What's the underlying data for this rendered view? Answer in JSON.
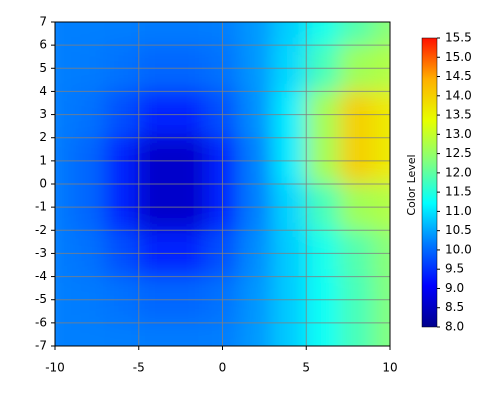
{
  "chart_data": {
    "type": "heatmap",
    "x": [
      -10,
      -8,
      -6,
      -4,
      -2,
      0,
      2,
      4,
      6,
      8,
      10
    ],
    "y": [
      7,
      5,
      3,
      1,
      -1,
      -3,
      -5,
      -7
    ],
    "z": [
      [
        10.2,
        10.2,
        10.19,
        10.17,
        10.17,
        10.19,
        10.4,
        10.82,
        11.37,
        11.91,
        12.37
      ],
      [
        10.2,
        10.17,
        10.09,
        9.98,
        9.98,
        10.09,
        10.38,
        10.91,
        11.79,
        12.61,
        12.79
      ],
      [
        10.19,
        10.09,
        9.78,
        9.37,
        9.37,
        9.78,
        10.32,
        11.09,
        12.64,
        14.01,
        13.64
      ],
      [
        10.17,
        9.98,
        9.37,
        8.59,
        8.59,
        9.37,
        10.21,
        11.07,
        12.64,
        14.01,
        13.64
      ],
      [
        10.17,
        9.98,
        9.37,
        8.59,
        8.59,
        9.37,
        10.19,
        10.88,
        11.79,
        12.61,
        12.79
      ],
      [
        10.19,
        10.09,
        9.78,
        9.37,
        9.37,
        9.78,
        10.29,
        10.81,
        11.37,
        11.91,
        12.37
      ],
      [
        10.2,
        10.17,
        10.09,
        9.98,
        9.98,
        10.09,
        10.37,
        10.8,
        11.3,
        11.8,
        12.3
      ],
      [
        10.2,
        10.2,
        10.19,
        10.17,
        10.17,
        10.19,
        10.4,
        10.8,
        11.3,
        11.8,
        12.3
      ]
    ],
    "xlim": [
      -10,
      10
    ],
    "ylim": [
      -7,
      7
    ],
    "xticks": [
      -10,
      -5,
      0,
      5,
      10
    ],
    "yticks": [
      -7,
      -6,
      -5,
      -4,
      -3,
      -2,
      -1,
      0,
      1,
      2,
      3,
      4,
      5,
      6,
      7
    ],
    "grid": true,
    "zlim": [
      8,
      15.5
    ],
    "colorscale": [
      "#00008c",
      "#0000ff",
      "#0078ff",
      "#00ffff",
      "#80ff80",
      "#e6ff00",
      "#ffb000",
      "#ff1000"
    ],
    "colorbar_label": "Color Level",
    "colorbar_ticks": [
      {
        "value": 8,
        "label": "8.0"
      },
      8.5,
      {
        "value": 9,
        "label": "9.0"
      },
      9.5,
      {
        "value": 10,
        "label": "10.0"
      },
      10.5,
      {
        "value": 11,
        "label": "11.0"
      },
      11.5,
      {
        "value": 12,
        "label": "12.0"
      },
      12.5,
      {
        "value": 13,
        "label": "13.0"
      },
      13.5,
      {
        "value": 14,
        "label": "14.0"
      },
      14.5,
      {
        "value": 15,
        "label": "15.0"
      },
      15.5
    ]
  }
}
